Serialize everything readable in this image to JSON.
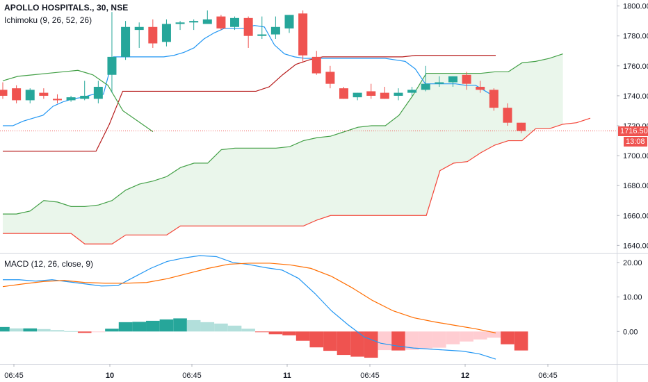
{
  "header": {
    "symbol": "APOLLO HOSPITALS., 30, NSE",
    "indicator": "Ichimoku (9, 26, 52, 26)"
  },
  "macd_legend": {
    "title": "MACD (12, 26, close, 9)"
  },
  "price_tag": {
    "price": "1716.50",
    "countdown": "13:08"
  },
  "colors": {
    "up": "#26a69a",
    "down": "#ef5350",
    "conversion": "#2196f3",
    "base": "#b71c1c",
    "span_a": "#43a047",
    "span_b": "#f44336",
    "cloud": "#e8f5e9",
    "macd": "#2196f3",
    "signal": "#ff6d00",
    "hist_up_strong": "#26a69a",
    "hist_up_weak": "#b2dfdb",
    "hist_down_strong": "#ef5350",
    "hist_down_weak": "#ffcdd2"
  },
  "chart_data": [
    {
      "type": "candlestick",
      "title": "APOLLO HOSPITALS., 30, NSE",
      "ylim": [
        1636,
        1804
      ],
      "y_ticks": [
        "1640.00",
        "1660.00",
        "1680.00",
        "1700.00",
        "1720.00",
        "1740.00",
        "1760.00",
        "1780.00",
        "1800.00"
      ],
      "x_ticks": [
        "06:45",
        "10",
        "06:45",
        "11",
        "06:45",
        "12",
        "06:45"
      ],
      "candles": [
        {
          "o": 1744,
          "h": 1749,
          "l": 1738,
          "c": 1740
        },
        {
          "o": 1745,
          "h": 1747,
          "l": 1735,
          "c": 1737
        },
        {
          "o": 1737,
          "h": 1745,
          "l": 1735,
          "c": 1744
        },
        {
          "o": 1742,
          "h": 1745,
          "l": 1738,
          "c": 1740
        },
        {
          "o": 1738,
          "h": 1741,
          "l": 1735,
          "c": 1737
        },
        {
          "o": 1737,
          "h": 1740,
          "l": 1736,
          "c": 1739
        },
        {
          "o": 1738,
          "h": 1750,
          "l": 1737,
          "c": 1740
        },
        {
          "o": 1738,
          "h": 1750,
          "l": 1735,
          "c": 1746
        },
        {
          "o": 1754,
          "h": 1796,
          "l": 1742,
          "c": 1766
        },
        {
          "o": 1766,
          "h": 1790,
          "l": 1764,
          "c": 1786
        },
        {
          "o": 1784,
          "h": 1789,
          "l": 1772,
          "c": 1786
        },
        {
          "o": 1786,
          "h": 1791,
          "l": 1772,
          "c": 1775
        },
        {
          "o": 1776,
          "h": 1791,
          "l": 1773,
          "c": 1788
        },
        {
          "o": 1788,
          "h": 1790,
          "l": 1784,
          "c": 1789
        },
        {
          "o": 1789,
          "h": 1791,
          "l": 1784,
          "c": 1790
        },
        {
          "o": 1788,
          "h": 1797,
          "l": 1788,
          "c": 1791
        },
        {
          "o": 1793,
          "h": 1794,
          "l": 1784,
          "c": 1785
        },
        {
          "o": 1786,
          "h": 1793,
          "l": 1784,
          "c": 1792
        },
        {
          "o": 1792,
          "h": 1793,
          "l": 1772,
          "c": 1780
        },
        {
          "o": 1780,
          "h": 1793,
          "l": 1778,
          "c": 1781
        },
        {
          "o": 1781,
          "h": 1793,
          "l": 1778,
          "c": 1786
        },
        {
          "o": 1785,
          "h": 1794,
          "l": 1782,
          "c": 1794
        },
        {
          "o": 1795,
          "h": 1797,
          "l": 1762,
          "c": 1767
        },
        {
          "o": 1766,
          "h": 1770,
          "l": 1754,
          "c": 1755
        },
        {
          "o": 1756,
          "h": 1760,
          "l": 1745,
          "c": 1748
        },
        {
          "o": 1745,
          "h": 1746,
          "l": 1738,
          "c": 1738
        },
        {
          "o": 1739,
          "h": 1742,
          "l": 1737,
          "c": 1742
        },
        {
          "o": 1743,
          "h": 1748,
          "l": 1738,
          "c": 1740
        },
        {
          "o": 1742,
          "h": 1746,
          "l": 1738,
          "c": 1738
        },
        {
          "o": 1740,
          "h": 1745,
          "l": 1737,
          "c": 1742
        },
        {
          "o": 1742,
          "h": 1746,
          "l": 1740,
          "c": 1744
        },
        {
          "o": 1744,
          "h": 1760,
          "l": 1743,
          "c": 1748
        },
        {
          "o": 1748,
          "h": 1753,
          "l": 1746,
          "c": 1749
        },
        {
          "o": 1749,
          "h": 1753,
          "l": 1746,
          "c": 1753
        },
        {
          "o": 1754,
          "h": 1756,
          "l": 1744,
          "c": 1748
        },
        {
          "o": 1746,
          "h": 1750,
          "l": 1742,
          "c": 1744
        },
        {
          "o": 1744,
          "h": 1745,
          "l": 1730,
          "c": 1732
        },
        {
          "o": 1732,
          "h": 1735,
          "l": 1720,
          "c": 1722
        },
        {
          "o": 1722,
          "h": 1722,
          "l": 1715,
          "c": 1716.5
        }
      ],
      "series": [
        {
          "name": "Conversion Line",
          "values": [
            1720,
            1720,
            1723,
            1725,
            1727,
            1733,
            1736,
            1738,
            1739,
            1741,
            1741,
            1766,
            1766,
            1766,
            1766,
            1766,
            1766,
            1767,
            1769,
            1772,
            1778,
            1782,
            1785,
            1785,
            1785,
            1787,
            1786,
            1774,
            1768,
            1766,
            1765,
            1765,
            1765,
            1765,
            1765,
            1765,
            1765,
            1765,
            1765,
            1764,
            1763,
            1758,
            1748,
            1748,
            1748,
            1748,
            1747,
            1747,
            1743,
            1739
          ],
          "start": 0
        },
        {
          "name": "Base Line",
          "values": [
            1703,
            1703,
            1703,
            1703,
            1703,
            1703,
            1703,
            1703,
            1721,
            1743,
            1743,
            1743,
            1743,
            1743,
            1743,
            1743,
            1743,
            1743,
            1743,
            1743,
            1746,
            1754,
            1761,
            1764,
            1766,
            1766,
            1766,
            1766,
            1766,
            1766,
            1766,
            1767,
            1767,
            1767,
            1767,
            1767,
            1767,
            1767
          ],
          "start": 0
        },
        {
          "name": "Lagging Span",
          "values": [
            1750,
            1753,
            1754,
            1755,
            1756,
            1757,
            1754,
            1747,
            1730,
            1723,
            1716
          ],
          "start": 0
        },
        {
          "name": "Leading Span A",
          "values": [
            1661,
            1661,
            1663,
            1670,
            1669,
            1666,
            1666,
            1667,
            1670,
            1677,
            1681,
            1683,
            1686,
            1692,
            1695,
            1695,
            1704,
            1705,
            1705,
            1705,
            1705,
            1706,
            1710,
            1712,
            1713,
            1716,
            1719,
            1720,
            1720,
            1727,
            1740,
            1755,
            1755,
            1755,
            1755,
            1755,
            1756,
            1756,
            1762,
            1763,
            1765,
            1768
          ],
          "start": 0
        },
        {
          "name": "Leading Span B",
          "values": [
            1648,
            1648,
            1648,
            1648,
            1648,
            1648,
            1641,
            1641,
            1641,
            1647,
            1647,
            1647,
            1647,
            1653,
            1653,
            1653,
            1653,
            1653,
            1653,
            1653,
            1653,
            1653,
            1653,
            1657,
            1660,
            1660,
            1660,
            1660,
            1660,
            1660,
            1660,
            1660,
            1690,
            1695,
            1696,
            1702,
            1707,
            1710,
            1710,
            1718,
            1718,
            1721,
            1722,
            1725
          ],
          "start": 0
        }
      ]
    },
    {
      "type": "bar",
      "title": "MACD (12, 26, close, 9)",
      "ylim": [
        -9,
        22
      ],
      "y_ticks": [
        "0.00",
        "10.00",
        "20.00"
      ],
      "histogram": [
        1.3,
        0.9,
        0.9,
        0.7,
        0.4,
        0.1,
        -0.4,
        -0.1,
        0.8,
        2.7,
        2.8,
        3.1,
        3.5,
        3.8,
        3.3,
        2.7,
        2.3,
        1.7,
        0.8,
        -0.2,
        -0.8,
        -1.1,
        -2.7,
        -4.6,
        -5.6,
        -6.8,
        -7.3,
        -7.6,
        -5.4,
        -5.5,
        -5.3,
        -4.9,
        -4.7,
        -3.7,
        -2.9,
        -2.3,
        -1.8,
        -3.7,
        -5.5
      ],
      "series": [
        {
          "name": "MACD",
          "values": [
            15,
            15,
            14.6,
            15,
            14.4,
            13.8,
            13.2,
            13.3,
            15.8,
            18.3,
            20.3,
            21.3,
            22.0,
            21.7,
            20.0,
            19.4,
            18.5,
            17.8,
            15.4,
            11.0,
            6.0,
            2.0,
            -1.6,
            -3.4,
            -4.2,
            -4.8,
            -5.1,
            -5.4,
            -5.7,
            -6.5,
            -8.0
          ]
        },
        {
          "name": "Signal",
          "values": [
            13.0,
            13.8,
            14.5,
            14.8,
            14.2,
            14.0,
            14.0,
            14.2,
            15.3,
            16.8,
            18.3,
            19.5,
            19.8,
            19.8,
            19.3,
            18.3,
            16.0,
            12.7,
            9.0,
            6.0,
            4.0,
            2.8,
            1.8,
            0.8,
            -0.4
          ]
        }
      ]
    }
  ]
}
